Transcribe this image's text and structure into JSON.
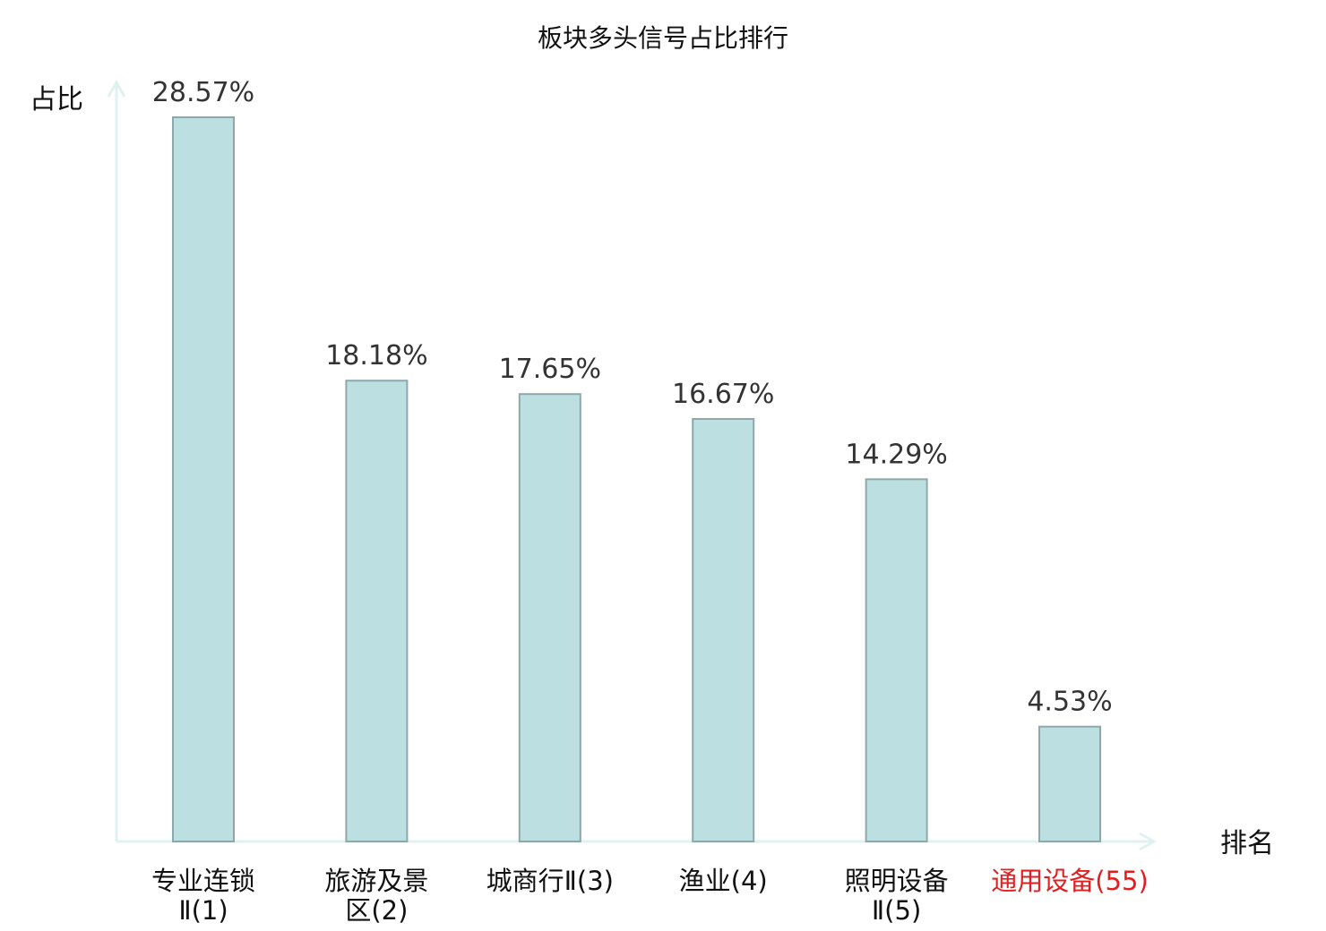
{
  "chart_data": {
    "type": "bar",
    "title": "板块多头信号占比排行",
    "ylabel": "占比",
    "xlabel": "排名",
    "ylim": [
      0,
      30
    ],
    "grid": false,
    "categories": [
      {
        "lines": [
          "专业连锁",
          "Ⅱ(1)"
        ],
        "highlight": false
      },
      {
        "lines": [
          "旅游及景",
          "区(2)"
        ],
        "highlight": false
      },
      {
        "lines": [
          "城商行Ⅱ(3)"
        ],
        "highlight": false
      },
      {
        "lines": [
          "渔业(4)"
        ],
        "highlight": false
      },
      {
        "lines": [
          "照明设备",
          "Ⅱ(5)"
        ],
        "highlight": false
      },
      {
        "lines": [
          "通用设备(55)"
        ],
        "highlight": true
      }
    ],
    "values": [
      28.57,
      18.18,
      17.65,
      16.67,
      14.29,
      4.53
    ],
    "value_labels": [
      "28.57%",
      "18.18%",
      "17.65%",
      "16.67%",
      "14.29%",
      "4.53%"
    ]
  },
  "colors": {
    "bar_fill": "#bce0e2",
    "bar_stroke": "#8ea8aa",
    "axis": "#e0f2ef",
    "text": "#111111",
    "value_text": "#333333",
    "highlight": "#e02020"
  }
}
